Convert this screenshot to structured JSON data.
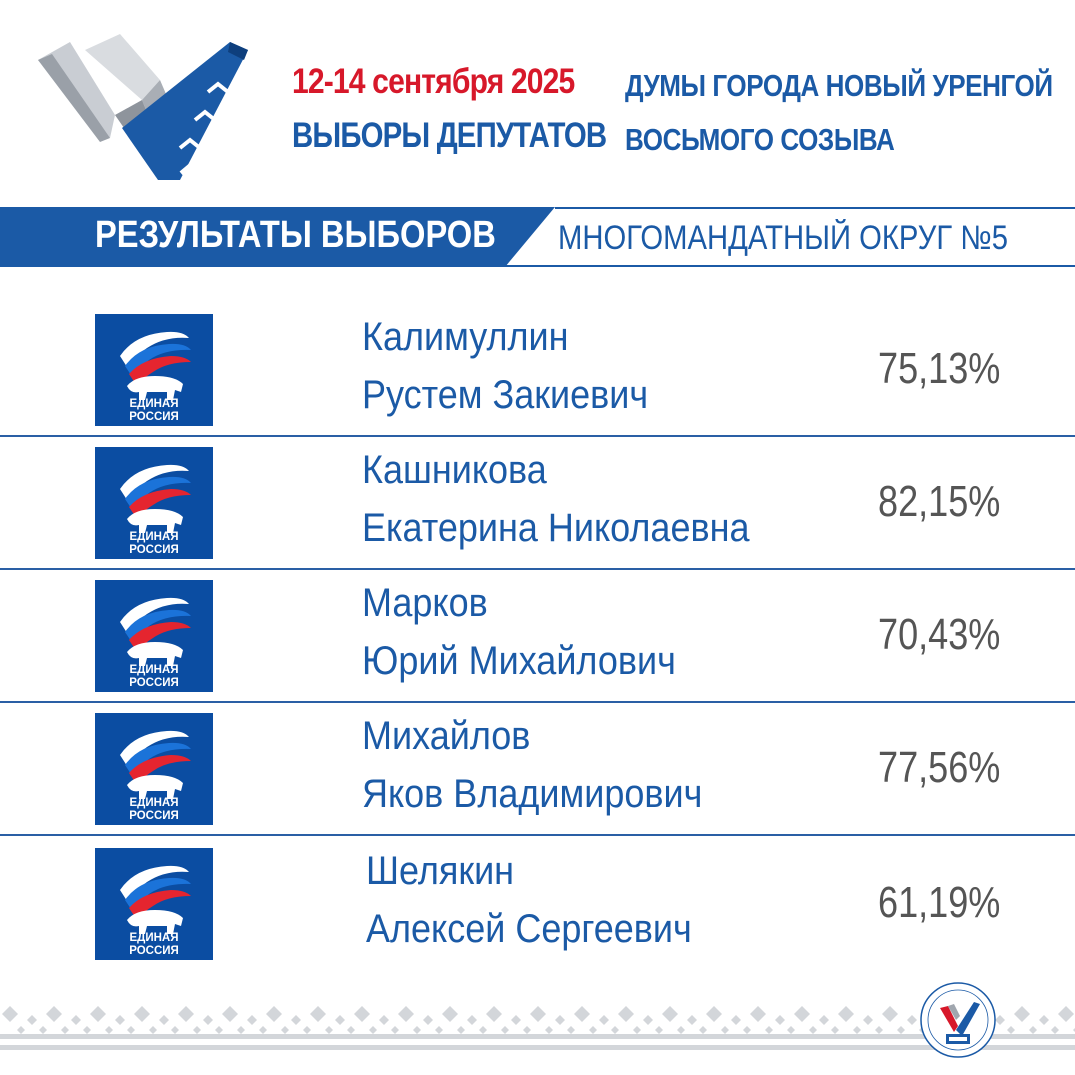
{
  "header": {
    "date": "12-14 сентября 2025",
    "line2": "ВЫБОРЫ ДЕПУТАТОВ",
    "right_line1": "ДУМЫ ГОРОДА НОВЫЙ УРЕНГОЙ",
    "right_line2": "ВОСЬМОГО СОЗЫВА"
  },
  "banner": {
    "title": "РЕЗУЛЬТАТЫ ВЫБОРОВ",
    "district": "МНОГОМАНДАТНЫЙ ОКРУГ №5"
  },
  "party": {
    "line1": "ЕДИНАЯ",
    "line2": "РОССИЯ"
  },
  "candidates": [
    {
      "surname": "Калимуллин",
      "given": "Рустем Закиевич",
      "percent": "75,13%"
    },
    {
      "surname": "Кашникова",
      "given": "Екатерина Николаевна",
      "percent": "82,15%"
    },
    {
      "surname": "Марков",
      "given": "Юрий Михайлович",
      "percent": "70,43%"
    },
    {
      "surname": "Михайлов",
      "given": "Яков Владимирович",
      "percent": "77,56%"
    },
    {
      "surname": "Шелякин",
      "given": "Алексей Сергеевич",
      "percent": "61,19%"
    }
  ],
  "colors": {
    "brand_blue": "#1b5aa6",
    "accent_red": "#d7182a",
    "percent_gray": "#555555",
    "party_blue": "#0b4da2"
  }
}
